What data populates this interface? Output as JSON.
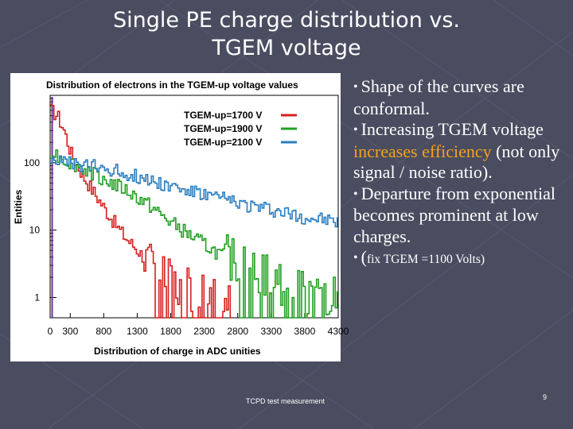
{
  "slide": {
    "title_line1": "Single PE charge distribution vs.",
    "title_line2": "TGEM voltage",
    "footer": "TCPD test measurement",
    "page_number": "9"
  },
  "bullets": [
    {
      "text": "Shape of the curves are conformal."
    },
    {
      "pre": "Increasing TGEM voltage ",
      "highlight": "increases efficiency",
      "post": " (not only signal / noise ratio)."
    },
    {
      "text": "Departure from exponential becomes prominent at low charges."
    },
    {
      "paren": "(",
      "text": "fix TGEM =1100 Volts)"
    }
  ],
  "chart_data": {
    "type": "line",
    "title": "Distribution of electrons  in the TGEM-up voltage values",
    "xlabel": "Distribution of  charge  in ADC  unities",
    "ylabel": "Entities",
    "y_scale": "log",
    "xlim": [
      0,
      4300
    ],
    "ylim": [
      0.5,
      1000
    ],
    "x_ticks": [
      "0",
      "300",
      "800",
      "1300",
      "1800",
      "2300",
      "2800",
      "3300",
      "3800",
      "4300"
    ],
    "x_tick_values": [
      0,
      300,
      800,
      1300,
      1800,
      2300,
      2800,
      3300,
      3800,
      4300
    ],
    "y_ticks": [
      "1",
      "10",
      "100"
    ],
    "y_tick_values": [
      1,
      10,
      100
    ],
    "series": [
      {
        "name": "TGEM-up=1700 V",
        "color": "#d62020",
        "x": [
          0,
          100,
          200,
          300,
          500,
          700,
          900,
          1100,
          1300,
          1500,
          1700,
          1900,
          2100,
          2300,
          2500,
          2700
        ],
        "y": [
          600,
          500,
          300,
          140,
          60,
          30,
          15,
          8,
          5,
          3,
          2,
          1.5,
          1.2,
          1,
          1,
          0.8
        ]
      },
      {
        "name": "TGEM-up=1900 V",
        "color": "#22a022",
        "x": [
          0,
          100,
          200,
          300,
          500,
          700,
          900,
          1100,
          1300,
          1500,
          1700,
          1900,
          2100,
          2300,
          2500,
          2700,
          2900,
          3100,
          3300,
          3500,
          3700,
          3900,
          4100,
          4300
        ],
        "y": [
          150,
          130,
          110,
          100,
          80,
          65,
          50,
          40,
          30,
          22,
          15,
          11,
          8,
          6,
          4.5,
          3.5,
          2.8,
          2.2,
          1.8,
          1.5,
          1.3,
          1.1,
          1,
          0.9
        ]
      },
      {
        "name": "TGEM-up=2100 V",
        "color": "#2a7fc2",
        "x": [
          0,
          100,
          200,
          300,
          500,
          700,
          900,
          1100,
          1300,
          1500,
          1700,
          1900,
          2100,
          2300,
          2500,
          2700,
          2900,
          3100,
          3300,
          3500,
          3700,
          3900,
          4100,
          4300
        ],
        "y": [
          120,
          110,
          100,
          95,
          90,
          85,
          80,
          70,
          62,
          55,
          48,
          42,
          37,
          33,
          30,
          27,
          24,
          22,
          20,
          18,
          16,
          15,
          14,
          13
        ]
      }
    ]
  },
  "colors": {
    "background": "#4a4d60",
    "highlight": "#f4a21d",
    "spike": "#7030a0"
  }
}
